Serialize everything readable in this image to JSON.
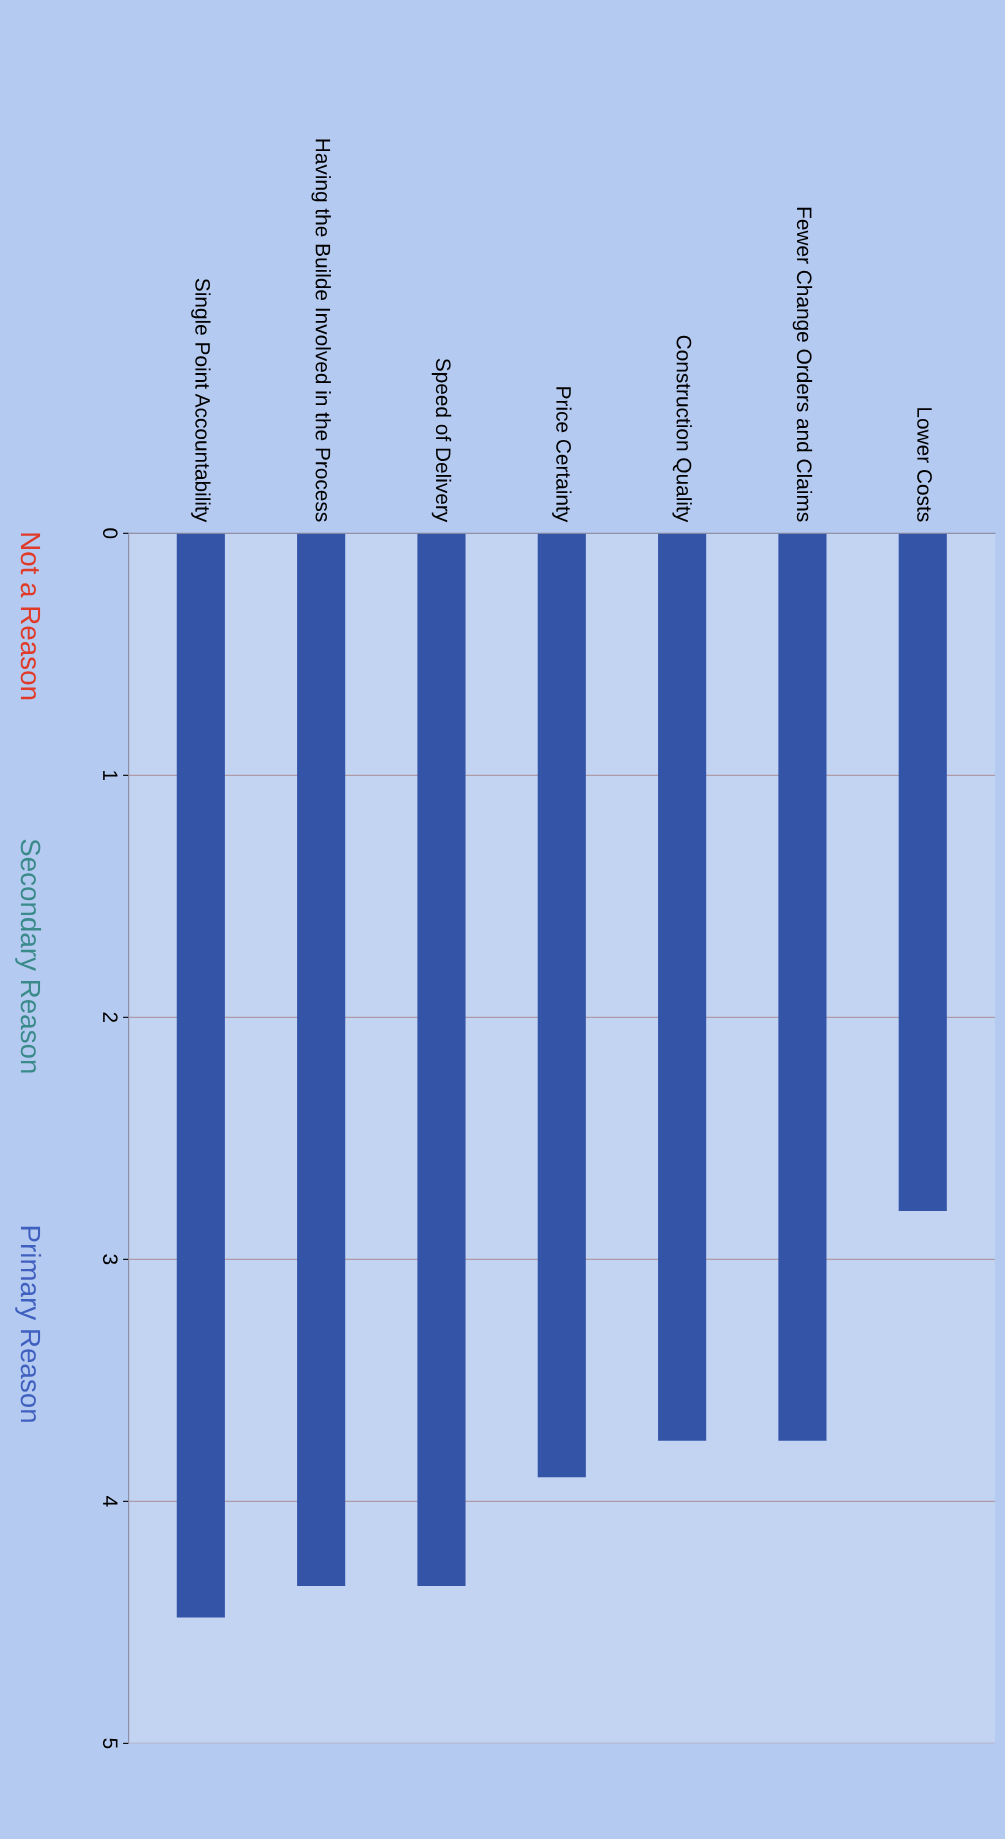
{
  "chart_data": {
    "type": "bar",
    "categories": [
      "Single Point Accountability",
      "Having the Builde Involved in the Process",
      "Speed of Delivery",
      "Price Certainty",
      "Construction Quality",
      "Fewer Change Orders and Claims",
      "Lower Costs"
    ],
    "values": [
      4.48,
      4.35,
      4.35,
      3.9,
      3.75,
      3.75,
      2.8
    ],
    "color": "#3454a8",
    "ylim": [
      5,
      0
    ],
    "yticks": [
      0,
      1,
      2,
      3,
      4,
      5
    ],
    "grid": "y",
    "annotations": [
      "Not a Reason",
      "Secondary Reason",
      "Primary Reason"
    ]
  }
}
